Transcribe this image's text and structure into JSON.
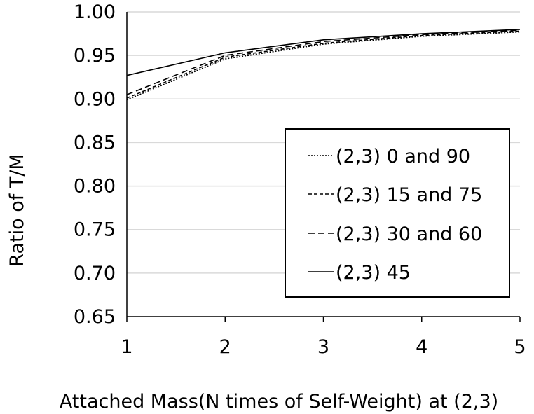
{
  "chart_data": {
    "type": "line",
    "title": "",
    "xlabel": "Attached Mass(N times of Self-Weight) at (2,3)",
    "ylabel": "Ratio of  T/M",
    "x": [
      1,
      2,
      3,
      4,
      5
    ],
    "xticks": [
      "1",
      "2",
      "3",
      "4",
      "5"
    ],
    "yticks": [
      "0.65",
      "0.70",
      "0.75",
      "0.80",
      "0.85",
      "0.90",
      "0.95",
      "1.00"
    ],
    "xlim": [
      1,
      5
    ],
    "ylim": [
      0.65,
      1.0
    ],
    "grid": "horizontal",
    "legend_position": "lower-right",
    "series": [
      {
        "name": "(2,3) 0 and 90",
        "dash": "dotted",
        "color": "#000000",
        "values": [
          0.899,
          0.946,
          0.963,
          0.972,
          0.977
        ]
      },
      {
        "name": "(2,3) 15 and 75",
        "dash": "short-dash",
        "color": "#000000",
        "values": [
          0.901,
          0.948,
          0.964,
          0.973,
          0.978
        ]
      },
      {
        "name": "(2,3) 30 and 60",
        "dash": "long-dash",
        "color": "#000000",
        "values": [
          0.905,
          0.95,
          0.966,
          0.974,
          0.979
        ]
      },
      {
        "name": "(2,3) 45",
        "dash": "solid",
        "color": "#000000",
        "values": [
          0.927,
          0.953,
          0.968,
          0.975,
          0.98
        ]
      }
    ]
  }
}
